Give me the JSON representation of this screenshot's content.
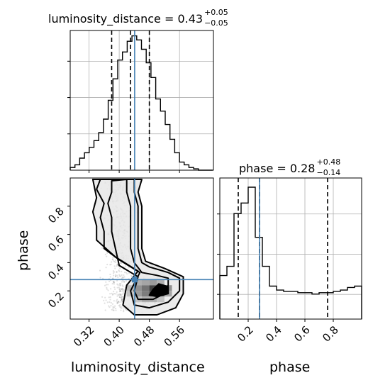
{
  "chart_data": [
    {
      "type": "histogram",
      "panel": "luminosity_distance",
      "title": {
        "text": "luminosity_distance = 0.43",
        "plus": "+0.05",
        "minus": "−0.05"
      },
      "xlim": [
        0.27,
        0.65
      ],
      "bin_edges_start": 0.27,
      "bin_width": 0.0126,
      "counts": [
        0.02,
        0.04,
        0.09,
        0.13,
        0.17,
        0.22,
        0.28,
        0.38,
        0.52,
        0.68,
        0.82,
        0.88,
        0.96,
        1.0,
        0.97,
        0.9,
        0.8,
        0.69,
        0.53,
        0.44,
        0.34,
        0.23,
        0.13,
        0.06,
        0.04,
        0.02,
        0.01,
        0.0,
        0.0,
        0.0
      ],
      "quantiles": [
        0.38,
        0.43,
        0.48
      ],
      "truth": 0.441,
      "grid": true
    },
    {
      "type": "heatmap",
      "panel": "2d",
      "xlabel": "luminosity_distance",
      "ylabel": "phase",
      "xlim": [
        0.27,
        0.65
      ],
      "ylim": [
        0.0,
        1.0
      ],
      "xticks": [
        "0.32",
        "0.40",
        "0.48",
        "0.56"
      ],
      "xtick_values": [
        0.32,
        0.4,
        0.48,
        0.56
      ],
      "yticks": [
        "0.2",
        "0.4",
        "0.6",
        "0.8"
      ],
      "ytick_values": [
        0.2,
        0.4,
        0.6,
        0.8
      ],
      "truth": [
        0.441,
        0.28
      ],
      "contours": [
        [
          [
            0.45,
            0.3
          ],
          [
            0.4,
            0.38
          ],
          [
            0.39,
            0.5
          ],
          [
            0.38,
            0.62
          ],
          [
            0.38,
            0.72
          ],
          [
            0.37,
            0.82
          ],
          [
            0.38,
            0.9
          ],
          [
            0.38,
            0.98
          ],
          [
            0.42,
            0.99
          ],
          [
            0.42,
            0.9
          ],
          [
            0.43,
            0.8
          ],
          [
            0.43,
            0.7
          ],
          [
            0.43,
            0.6
          ],
          [
            0.43,
            0.5
          ],
          [
            0.44,
            0.4
          ],
          [
            0.46,
            0.33
          ],
          [
            0.5,
            0.31
          ],
          [
            0.53,
            0.29
          ],
          [
            0.53,
            0.24
          ],
          [
            0.52,
            0.18
          ],
          [
            0.49,
            0.14
          ],
          [
            0.45,
            0.14
          ],
          [
            0.44,
            0.2
          ],
          [
            0.45,
            0.3
          ]
        ],
        [
          [
            0.455,
            0.33
          ],
          [
            0.4,
            0.42
          ],
          [
            0.36,
            0.5
          ],
          [
            0.36,
            0.62
          ],
          [
            0.35,
            0.72
          ],
          [
            0.36,
            0.82
          ],
          [
            0.34,
            0.92
          ],
          [
            0.35,
            0.99
          ],
          [
            0.44,
            0.99
          ],
          [
            0.44,
            0.9
          ],
          [
            0.45,
            0.8
          ],
          [
            0.45,
            0.7
          ],
          [
            0.45,
            0.6
          ],
          [
            0.45,
            0.5
          ],
          [
            0.46,
            0.4
          ],
          [
            0.48,
            0.37
          ],
          [
            0.53,
            0.33
          ],
          [
            0.56,
            0.29
          ],
          [
            0.56,
            0.2
          ],
          [
            0.53,
            0.12
          ],
          [
            0.48,
            0.08
          ],
          [
            0.44,
            0.1
          ],
          [
            0.43,
            0.2
          ],
          [
            0.455,
            0.33
          ]
        ],
        [
          [
            0.45,
            0.34
          ],
          [
            0.39,
            0.44
          ],
          [
            0.34,
            0.56
          ],
          [
            0.34,
            0.66
          ],
          [
            0.33,
            0.76
          ],
          [
            0.34,
            0.86
          ],
          [
            0.33,
            0.99
          ],
          [
            0.46,
            0.99
          ],
          [
            0.45,
            0.9
          ],
          [
            0.46,
            0.8
          ],
          [
            0.46,
            0.66
          ],
          [
            0.46,
            0.5
          ],
          [
            0.47,
            0.41
          ],
          [
            0.52,
            0.36
          ],
          [
            0.57,
            0.3
          ],
          [
            0.57,
            0.18
          ],
          [
            0.55,
            0.08
          ],
          [
            0.5,
            0.03
          ],
          [
            0.44,
            0.03
          ],
          [
            0.41,
            0.1
          ],
          [
            0.42,
            0.24
          ],
          [
            0.45,
            0.34
          ]
        ],
        [
          [
            0.505,
            0.25
          ],
          [
            0.49,
            0.21
          ],
          [
            0.48,
            0.17
          ],
          [
            0.5,
            0.16
          ],
          [
            0.53,
            0.18
          ],
          [
            0.53,
            0.23
          ],
          [
            0.505,
            0.25
          ]
        ]
      ],
      "density": [
        {
          "x": 0.42,
          "y": 0.2,
          "w": 0.02,
          "h": 0.04,
          "v": 0.35
        },
        {
          "x": 0.44,
          "y": 0.2,
          "w": 0.02,
          "h": 0.04,
          "v": 0.55
        },
        {
          "x": 0.46,
          "y": 0.2,
          "w": 0.02,
          "h": 0.04,
          "v": 0.7
        },
        {
          "x": 0.48,
          "y": 0.2,
          "w": 0.02,
          "h": 0.04,
          "v": 0.95
        },
        {
          "x": 0.5,
          "y": 0.2,
          "w": 0.02,
          "h": 0.04,
          "v": 0.85
        },
        {
          "x": 0.52,
          "y": 0.2,
          "w": 0.02,
          "h": 0.04,
          "v": 0.55
        },
        {
          "x": 0.42,
          "y": 0.16,
          "w": 0.02,
          "h": 0.04,
          "v": 0.3
        },
        {
          "x": 0.44,
          "y": 0.16,
          "w": 0.02,
          "h": 0.04,
          "v": 0.5
        },
        {
          "x": 0.46,
          "y": 0.16,
          "w": 0.02,
          "h": 0.04,
          "v": 0.65
        },
        {
          "x": 0.48,
          "y": 0.16,
          "w": 0.02,
          "h": 0.04,
          "v": 0.9
        },
        {
          "x": 0.5,
          "y": 0.16,
          "w": 0.02,
          "h": 0.04,
          "v": 0.8
        },
        {
          "x": 0.52,
          "y": 0.16,
          "w": 0.02,
          "h": 0.04,
          "v": 0.45
        },
        {
          "x": 0.44,
          "y": 0.24,
          "w": 0.02,
          "h": 0.04,
          "v": 0.4
        },
        {
          "x": 0.46,
          "y": 0.24,
          "w": 0.02,
          "h": 0.04,
          "v": 0.45
        },
        {
          "x": 0.48,
          "y": 0.24,
          "w": 0.02,
          "h": 0.04,
          "v": 0.5
        },
        {
          "x": 0.5,
          "y": 0.24,
          "w": 0.02,
          "h": 0.04,
          "v": 0.4
        },
        {
          "x": 0.44,
          "y": 0.12,
          "w": 0.02,
          "h": 0.04,
          "v": 0.3
        },
        {
          "x": 0.46,
          "y": 0.12,
          "w": 0.02,
          "h": 0.04,
          "v": 0.4
        },
        {
          "x": 0.48,
          "y": 0.12,
          "w": 0.02,
          "h": 0.04,
          "v": 0.4
        },
        {
          "x": 0.5,
          "y": 0.12,
          "w": 0.02,
          "h": 0.04,
          "v": 0.3
        }
      ]
    },
    {
      "type": "histogram",
      "panel": "phase",
      "title": {
        "text": "phase = 0.28",
        "plus": "+0.48",
        "minus": "−0.14"
      },
      "xlabel": "phase",
      "xlim": [
        0.0,
        1.0
      ],
      "xticks": [
        "0.2",
        "0.4",
        "0.6",
        "0.8"
      ],
      "xtick_values": [
        0.2,
        0.4,
        0.6,
        0.8
      ],
      "bin_edges_start": 0.0,
      "bin_width": 0.05,
      "counts": [
        0.33,
        0.4,
        0.8,
        0.88,
        1.0,
        0.62,
        0.4,
        0.25,
        0.22,
        0.21,
        0.21,
        0.2,
        0.2,
        0.19,
        0.2,
        0.2,
        0.21,
        0.22,
        0.24,
        0.25
      ],
      "quantiles": [
        0.13,
        0.28,
        0.76
      ],
      "truth": 0.28,
      "grid": true
    }
  ]
}
